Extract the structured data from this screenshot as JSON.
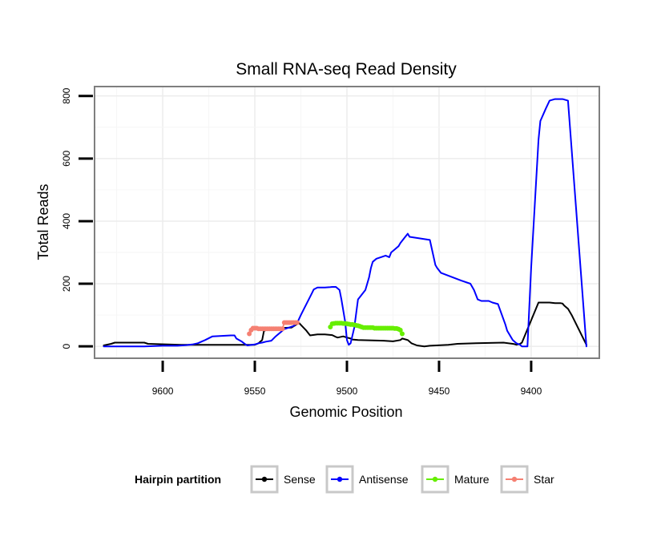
{
  "chart_data": {
    "type": "line",
    "title": "Small RNA-seq Read Density",
    "xlabel": "Genomic Position",
    "ylabel": "Total Reads",
    "x_reversed": true,
    "xlim": [
      9363,
      9637
    ],
    "ylim": [
      -38,
      830
    ],
    "x_ticks": [
      9600,
      9550,
      9500,
      9450,
      9400
    ],
    "y_ticks": [
      0,
      200,
      400,
      600,
      800
    ],
    "grid": true,
    "legend": {
      "title": "Hairpin partition",
      "position": "bottom",
      "entries": [
        "Sense",
        "Antisense",
        "Mature",
        "Star"
      ]
    },
    "series": [
      {
        "name": "Sense",
        "color": "#000000",
        "stroke_width": 2,
        "markers": false,
        "x": [
          9632,
          9628,
          9626,
          9610,
          9608,
          9590,
          9570,
          9550,
          9548,
          9546,
          9545,
          9540,
          9530,
          9526,
          9522,
          9520,
          9516,
          9512,
          9508,
          9506,
          9505,
          9502,
          9500,
          9498,
          9497,
          9494,
          9480,
          9475,
          9471,
          9470,
          9467,
          9465,
          9462,
          9458,
          9455,
          9445,
          9440,
          9430,
          9415,
          9410,
          9409,
          9408,
          9406,
          9405,
          9396,
          9390,
          9387,
          9384,
          9383,
          9382,
          9380,
          9378,
          9370
        ],
        "y": [
          3,
          8,
          12,
          12,
          8,
          5,
          5,
          5,
          10,
          20,
          50,
          58,
          60,
          75,
          50,
          35,
          38,
          38,
          36,
          30,
          28,
          32,
          28,
          25,
          22,
          20,
          18,
          16,
          20,
          25,
          20,
          10,
          3,
          0,
          2,
          5,
          8,
          10,
          12,
          8,
          7,
          5,
          8,
          12,
          140,
          140,
          138,
          138,
          137,
          130,
          120,
          100,
          5
        ]
      },
      {
        "name": "Antisense",
        "color": "#0000ff",
        "stroke_width": 2,
        "markers": false,
        "x": [
          9632,
          9610,
          9600,
          9592,
          9587,
          9584,
          9581,
          9577,
          9573,
          9563,
          9561,
          9560,
          9557,
          9555,
          9554,
          9550,
          9548,
          9546,
          9544,
          9541,
          9539,
          9534,
          9529,
          9527,
          9525,
          9522,
          9519,
          9518,
          9516,
          9512,
          9509,
          9508,
          9506,
          9504,
          9503,
          9501,
          9500,
          9499,
          9498,
          9496,
          9494,
          9490,
          9488,
          9487,
          9486,
          9484,
          9479,
          9477,
          9476,
          9474,
          9472,
          9471,
          9469,
          9467,
          9466,
          9455,
          9452,
          9451,
          9449,
          9438,
          9433,
          9431,
          9429,
          9427,
          9425,
          9423,
          9421,
          9418,
          9414,
          9413,
          9410,
          9409,
          9408,
          9406,
          9405,
          9402,
          9400,
          9396,
          9395,
          9392,
          9390,
          9387,
          9385,
          9383,
          9380,
          9370
        ],
        "y": [
          0,
          0,
          2,
          2,
          4,
          6,
          10,
          20,
          32,
          35,
          35,
          25,
          15,
          6,
          3,
          6,
          10,
          12,
          15,
          18,
          30,
          55,
          65,
          75,
          100,
          135,
          170,
          182,
          188,
          188,
          189,
          190,
          190,
          180,
          150,
          80,
          20,
          5,
          10,
          60,
          150,
          180,
          220,
          250,
          270,
          280,
          290,
          285,
          300,
          310,
          320,
          330,
          345,
          360,
          350,
          340,
          260,
          250,
          235,
          210,
          200,
          180,
          150,
          145,
          145,
          145,
          140,
          135,
          70,
          50,
          20,
          15,
          10,
          5,
          0,
          0,
          250,
          660,
          720,
          760,
          785,
          790,
          790,
          790,
          785,
          0
        ]
      },
      {
        "name": "Mature",
        "color": "#66ee00",
        "stroke_width": 1.8,
        "markers": true,
        "marker_size": 3,
        "x": [
          9509,
          9508,
          9507,
          9506,
          9505,
          9504,
          9503,
          9502,
          9501,
          9500,
          9499,
          9498,
          9497,
          9496,
          9495,
          9494,
          9493,
          9492,
          9491,
          9490,
          9489,
          9488,
          9487,
          9486,
          9485,
          9484,
          9483,
          9482,
          9481,
          9480,
          9479,
          9478,
          9477,
          9476,
          9475,
          9474,
          9473,
          9472,
          9471,
          9470
        ],
        "y": [
          62,
          72,
          73,
          74,
          74,
          74,
          74,
          73,
          73,
          72,
          71,
          70,
          70,
          69,
          67,
          66,
          64,
          62,
          60,
          60,
          60,
          60,
          60,
          60,
          58,
          58,
          58,
          58,
          58,
          58,
          58,
          58,
          58,
          58,
          58,
          57,
          57,
          55,
          52,
          40
        ]
      },
      {
        "name": "Star",
        "color": "#f58072",
        "stroke_width": 1.8,
        "markers": true,
        "marker_size": 3,
        "x": [
          9553,
          9552,
          9551,
          9550,
          9549,
          9548,
          9547,
          9546,
          9545,
          9544,
          9543,
          9542,
          9541,
          9540,
          9539,
          9538,
          9537,
          9536,
          9535,
          9534,
          9533,
          9532,
          9531,
          9530,
          9529,
          9528,
          9527
        ],
        "y": [
          40,
          52,
          58,
          58,
          58,
          56,
          56,
          56,
          56,
          56,
          56,
          56,
          56,
          56,
          56,
          56,
          56,
          56,
          56,
          76,
          76,
          76,
          76,
          76,
          76,
          76,
          76
        ]
      }
    ]
  }
}
